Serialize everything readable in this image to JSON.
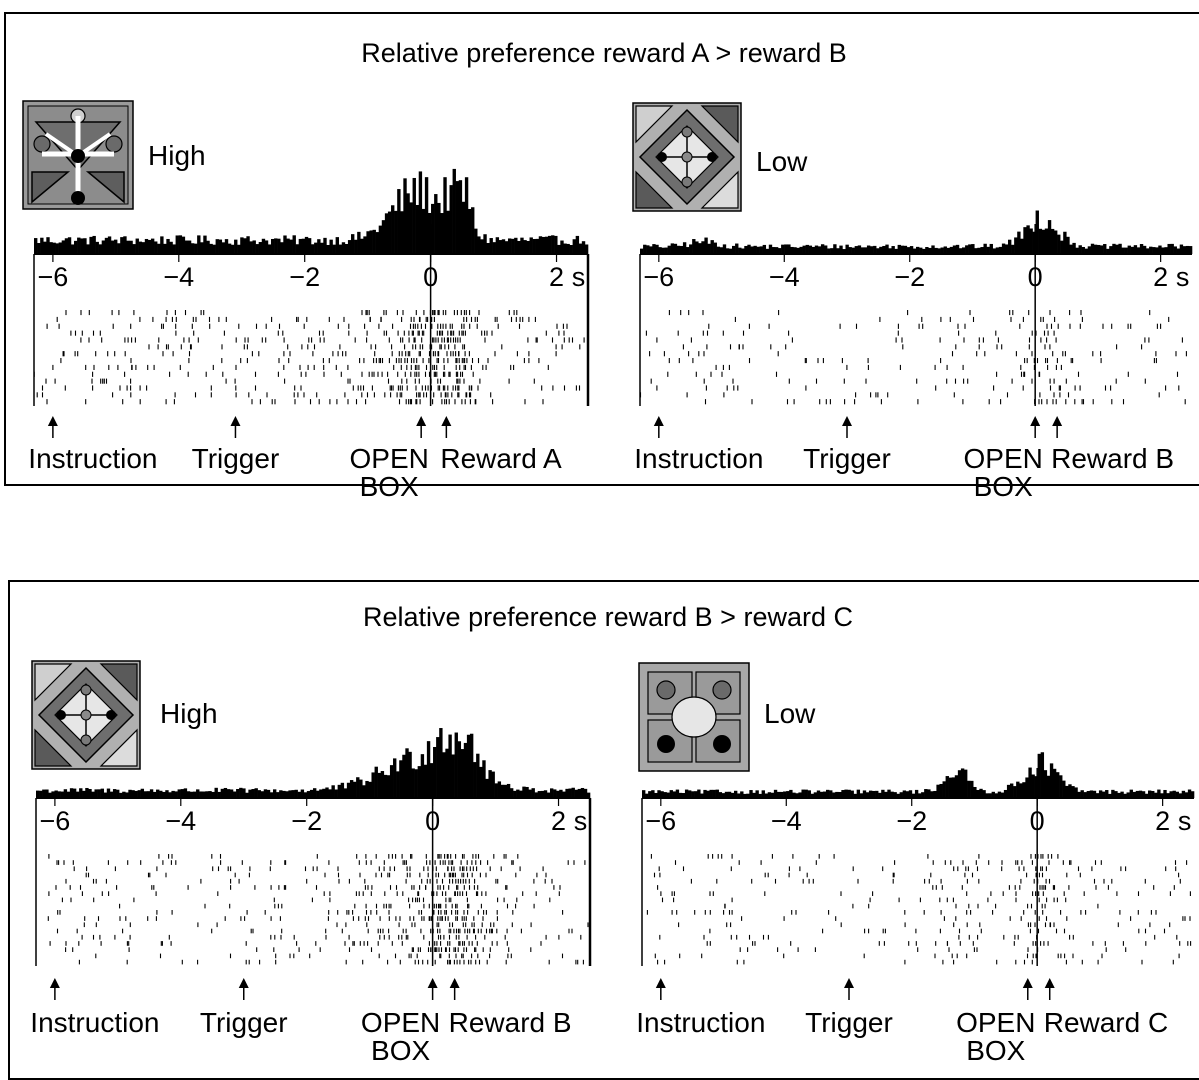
{
  "figure": {
    "sections": [
      {
        "title": "Relative preference reward A > reward B",
        "panels": [
          {
            "preference_label": "High",
            "icon": "stimulus-icon-triangles",
            "axis_ticks": [
              "−6",
              "−4",
              "−2",
              "0",
              "2"
            ],
            "axis_unit": "s",
            "events": [
              "Instruction",
              "Trigger",
              "OPEN",
              "Reward A"
            ],
            "event_subline": "BOX"
          },
          {
            "preference_label": "Low",
            "icon": "stimulus-icon-diamond",
            "axis_ticks": [
              "−6",
              "−4",
              "−2",
              "0",
              "2"
            ],
            "axis_unit": "s",
            "events": [
              "Instruction",
              "Trigger",
              "OPEN",
              "Reward B"
            ],
            "event_subline": "BOX"
          }
        ]
      },
      {
        "title": "Relative preference reward B > reward C",
        "panels": [
          {
            "preference_label": "High",
            "icon": "stimulus-icon-diamond",
            "axis_ticks": [
              "−6",
              "−4",
              "−2",
              "0",
              "2"
            ],
            "axis_unit": "s",
            "events": [
              "Instruction",
              "Trigger",
              "OPEN",
              "Reward B"
            ],
            "event_subline": "BOX"
          },
          {
            "preference_label": "Low",
            "icon": "stimulus-icon-circles",
            "axis_ticks": [
              "−6",
              "−4",
              "−2",
              "0",
              "2"
            ],
            "axis_unit": "s",
            "events": [
              "Instruction",
              "Trigger",
              "OPEN",
              "Reward C"
            ],
            "event_subline": "BOX"
          }
        ]
      }
    ]
  },
  "chart_data": [
    {
      "type": "histogram",
      "section": "Relative preference reward A > reward B",
      "condition": "High",
      "x_tick_labels": [
        "−6",
        "−4",
        "−2",
        "0",
        "2"
      ],
      "xlim": [
        -6.3,
        2.5
      ],
      "x_unit": "s",
      "event_times": {
        "Instruction": -6.0,
        "Trigger": -3.1,
        "OPEN BOX": -0.15,
        "Reward A": 0.25
      },
      "profile": {
        "baseline": 0.22,
        "peaks": [
          {
            "t": -0.2,
            "h": 0.8,
            "w": 0.55
          },
          {
            "t": 0.45,
            "h": 0.95,
            "w": 0.2
          }
        ]
      }
    },
    {
      "type": "histogram",
      "section": "Relative preference reward A > reward B",
      "condition": "Low",
      "x_tick_labels": [
        "−6",
        "−4",
        "−2",
        "0",
        "2"
      ],
      "xlim": [
        -6.3,
        2.5
      ],
      "x_unit": "s",
      "event_times": {
        "Instruction": -6.0,
        "Trigger": -3.0,
        "OPEN BOX": 0.0,
        "Reward B": 0.35
      },
      "profile": {
        "baseline": 0.12,
        "peaks": [
          {
            "t": 0.1,
            "h": 0.45,
            "w": 0.35
          },
          {
            "t": -5.3,
            "h": 0.08,
            "w": 0.3
          }
        ]
      }
    },
    {
      "type": "histogram",
      "section": "Relative preference reward B > reward C",
      "condition": "High",
      "x_tick_labels": [
        "−6",
        "−4",
        "−2",
        "0",
        "2"
      ],
      "xlim": [
        -6.3,
        2.5
      ],
      "x_unit": "s",
      "event_times": {
        "Instruction": -6.0,
        "Trigger": -3.0,
        "OPEN BOX": 0.0,
        "Reward B": 0.35
      },
      "profile": {
        "baseline": 0.12,
        "peaks": [
          {
            "t": -0.1,
            "h": 0.55,
            "w": 0.9
          },
          {
            "t": 0.4,
            "h": 0.7,
            "w": 0.35
          }
        ]
      }
    },
    {
      "type": "histogram",
      "section": "Relative preference reward B > reward C",
      "condition": "Low",
      "x_tick_labels": [
        "−6",
        "−4",
        "−2",
        "0",
        "2"
      ],
      "xlim": [
        -6.3,
        2.5
      ],
      "x_unit": "s",
      "event_times": {
        "Instruction": -6.0,
        "Trigger": -3.0,
        "OPEN BOX": -0.15,
        "Reward C": 0.2
      },
      "profile": {
        "baseline": 0.1,
        "peaks": [
          {
            "t": -1.3,
            "h": 0.35,
            "w": 0.25
          },
          {
            "t": 0.05,
            "h": 0.45,
            "w": 0.35
          }
        ]
      }
    }
  ]
}
